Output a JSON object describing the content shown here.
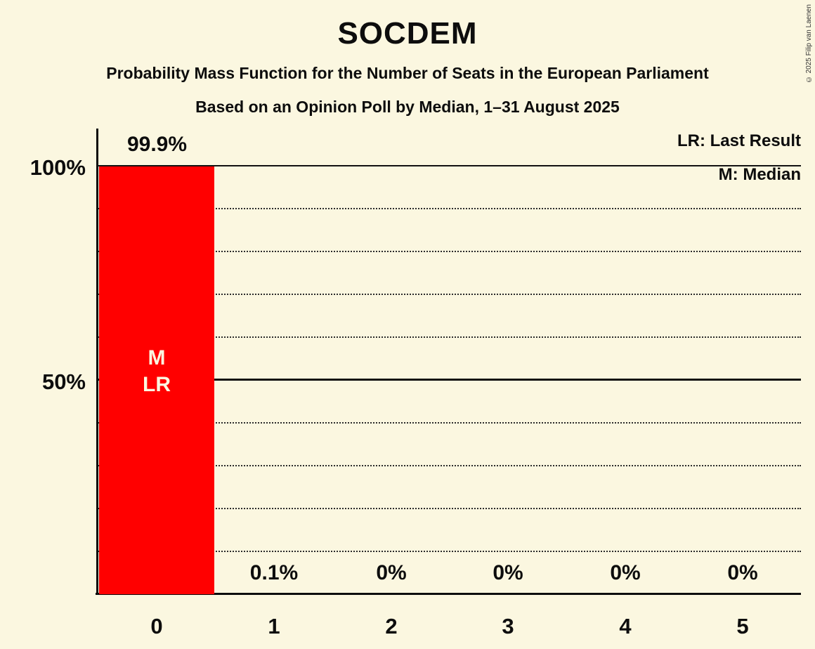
{
  "page": {
    "title": "SOCDEM",
    "subtitle_line1": "Probability Mass Function for the Number of Seats in the European Parliament",
    "subtitle_line2": "Based on an Opinion Poll by Median, 1–31 August 2025",
    "copyright": "© 2025 Filip van Laenen"
  },
  "legend": {
    "last_result": "LR: Last Result",
    "median": "M: Median"
  },
  "colors": {
    "background": "#FBF7E0",
    "bar": "#FF0000",
    "text": "#0D0D0D"
  },
  "chart_data": {
    "type": "bar",
    "title": "SOCDEM",
    "categories": [
      "0",
      "1",
      "2",
      "3",
      "4",
      "5"
    ],
    "values": [
      99.9,
      0.1,
      0,
      0,
      0,
      0
    ],
    "value_labels": [
      "99.9%",
      "0.1%",
      "0%",
      "0%",
      "0%",
      "0%"
    ],
    "annotated_category": "0",
    "bar_annotations": [
      "M",
      "LR"
    ],
    "ylim": [
      0,
      100
    ],
    "y_ticks": [
      {
        "value": 100,
        "label": "100%",
        "line": "solid"
      },
      {
        "value": 50,
        "label": "50%",
        "line": "solid"
      }
    ],
    "gridlines": {
      "dotted_every_percent": 10,
      "solid_at_percent": [
        50,
        100
      ]
    },
    "legend_entries": [
      "LR: Last Result",
      "M: Median"
    ],
    "legend_position": "top-right",
    "bar_color": "#FF0000"
  }
}
